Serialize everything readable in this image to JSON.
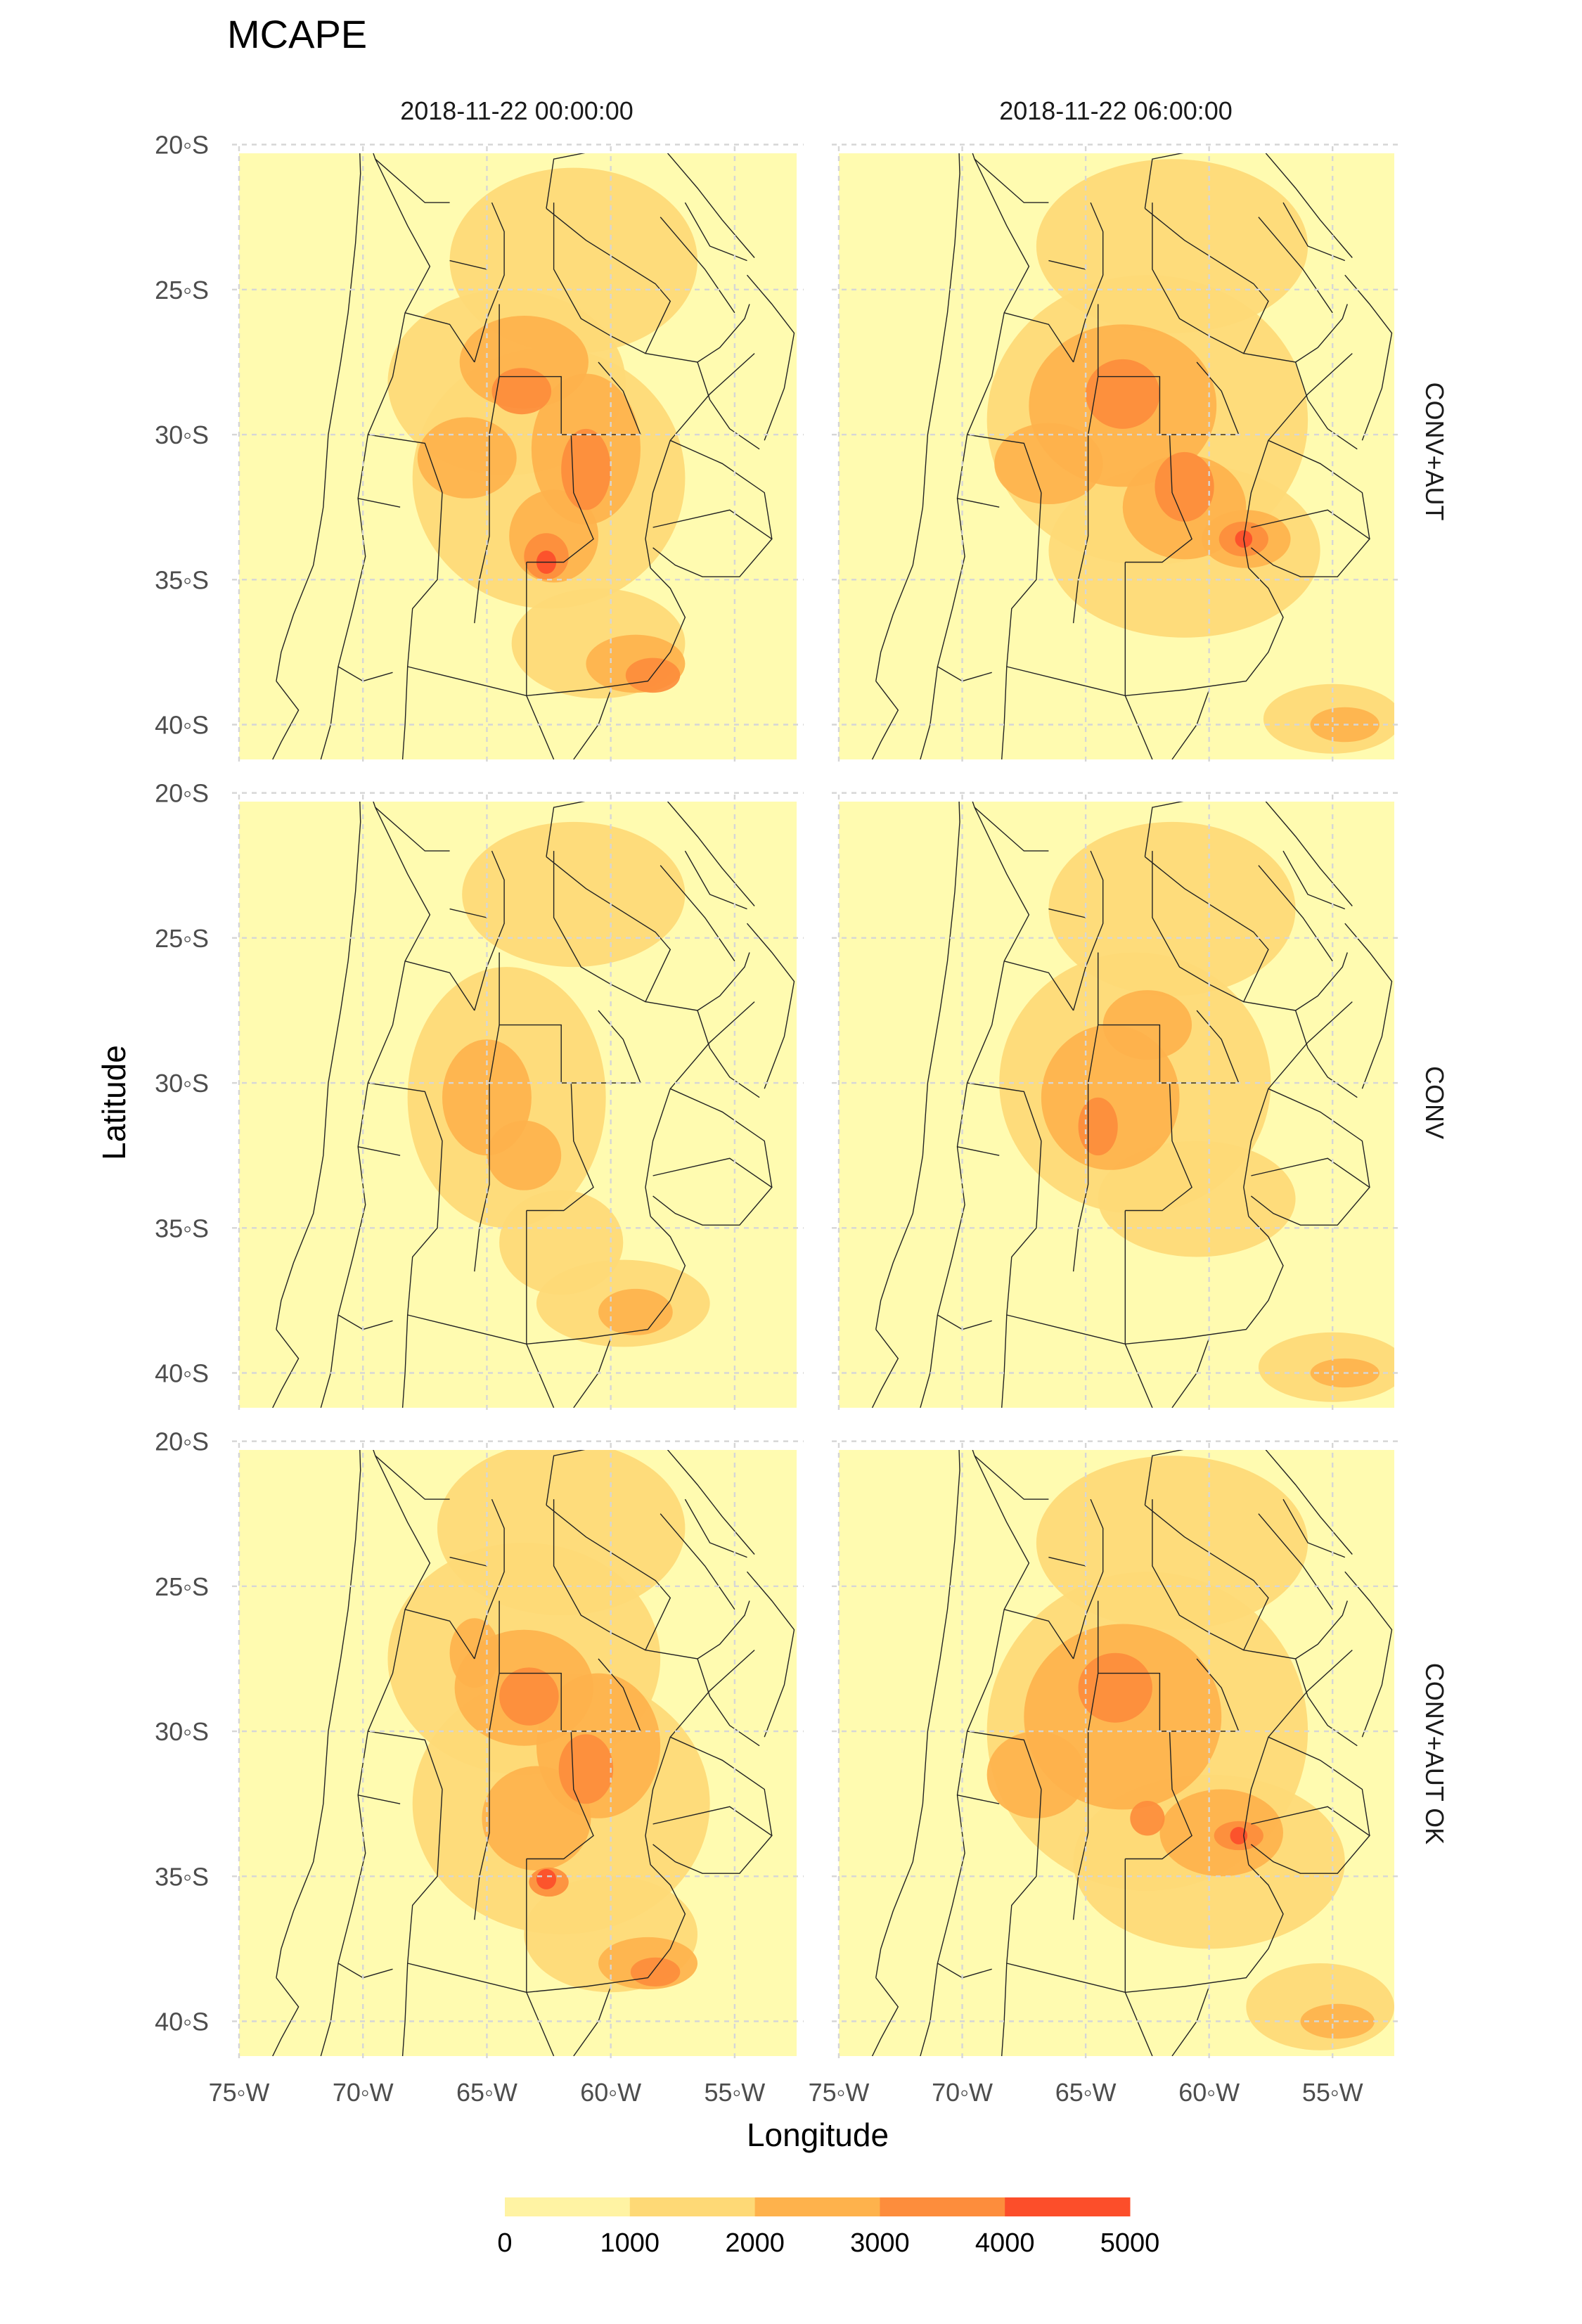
{
  "chart_data": {
    "type": "heatmap",
    "title": "MCAPE",
    "xlabel": "Longitude",
    "ylabel": "Latitude",
    "xlim": [
      -75,
      -52.5
    ],
    "ylim": [
      -41.2,
      -20.3
    ],
    "x_ticks": [
      -75,
      -70,
      -65,
      -60,
      -55
    ],
    "x_tick_labels": [
      "75◦W",
      "70◦W",
      "65◦W",
      "60◦W",
      "55◦W"
    ],
    "y_ticks": [
      -20,
      -25,
      -30,
      -35,
      -40
    ],
    "y_tick_labels": [
      "20◦S",
      "25◦S",
      "30◦S",
      "35◦S",
      "40◦S"
    ],
    "columns": [
      "2018-11-22 00:00:00",
      "2018-11-22 06:00:00"
    ],
    "rows": [
      "CONV+AUT",
      "CONV",
      "CONV+AUT OK"
    ],
    "grid": true,
    "legend": {
      "position": "bottom",
      "breaks": [
        0,
        1000,
        2000,
        3000,
        4000,
        5000
      ],
      "labels": [
        "0",
        "1000",
        "2000",
        "3000",
        "4000",
        "5000"
      ],
      "colors": [
        "#FFF3A3",
        "#FED976",
        "#FEB24C",
        "#FD8D3C",
        "#FC4E2A",
        "#E31A1C"
      ]
    },
    "background_color": "#FFFBB0",
    "panels": [
      {
        "row": 0,
        "col": 0,
        "blobs": [
          {
            "lon": -64.2,
            "lat": -28.2,
            "rx": 4.8,
            "ry": 3.2,
            "level": 1
          },
          {
            "lon": -62.5,
            "lat": -31.5,
            "rx": 5.5,
            "ry": 4.5,
            "level": 1
          },
          {
            "lon": -61.5,
            "lat": -24.0,
            "rx": 5.0,
            "ry": 3.2,
            "level": 1
          },
          {
            "lon": -60.5,
            "lat": -37.2,
            "rx": 3.5,
            "ry": 1.9,
            "level": 1
          },
          {
            "lon": -63.5,
            "lat": -27.5,
            "rx": 2.6,
            "ry": 1.6,
            "level": 2
          },
          {
            "lon": -61.0,
            "lat": -30.5,
            "rx": 2.2,
            "ry": 2.6,
            "level": 2
          },
          {
            "lon": -65.8,
            "lat": -30.8,
            "rx": 2.0,
            "ry": 1.4,
            "level": 2
          },
          {
            "lon": -62.3,
            "lat": -33.5,
            "rx": 1.8,
            "ry": 1.6,
            "level": 2
          },
          {
            "lon": -59.0,
            "lat": -37.9,
            "rx": 2.0,
            "ry": 1.0,
            "level": 2
          },
          {
            "lon": -61.0,
            "lat": -31.2,
            "rx": 1.0,
            "ry": 1.4,
            "level": 3
          },
          {
            "lon": -63.6,
            "lat": -28.5,
            "rx": 1.2,
            "ry": 0.8,
            "level": 3
          },
          {
            "lon": -62.6,
            "lat": -34.2,
            "rx": 0.9,
            "ry": 0.8,
            "level": 3
          },
          {
            "lon": -58.3,
            "lat": -38.3,
            "rx": 1.1,
            "ry": 0.6,
            "level": 3
          },
          {
            "lon": -62.6,
            "lat": -34.4,
            "rx": 0.4,
            "ry": 0.4,
            "level": 4
          }
        ]
      },
      {
        "row": 0,
        "col": 1,
        "blobs": [
          {
            "lon": -62.5,
            "lat": -29.5,
            "rx": 6.5,
            "ry": 5.0,
            "level": 1
          },
          {
            "lon": -61.0,
            "lat": -34.0,
            "rx": 5.5,
            "ry": 3.0,
            "level": 1
          },
          {
            "lon": -61.5,
            "lat": -23.5,
            "rx": 5.5,
            "ry": 3.0,
            "level": 1
          },
          {
            "lon": -55.0,
            "lat": -39.8,
            "rx": 2.8,
            "ry": 1.2,
            "level": 1
          },
          {
            "lon": -63.5,
            "lat": -29.0,
            "rx": 3.8,
            "ry": 2.8,
            "level": 2
          },
          {
            "lon": -66.5,
            "lat": -31.0,
            "rx": 2.2,
            "ry": 1.4,
            "level": 2
          },
          {
            "lon": -61.0,
            "lat": -32.5,
            "rx": 2.5,
            "ry": 1.8,
            "level": 2
          },
          {
            "lon": -58.5,
            "lat": -33.6,
            "rx": 1.8,
            "ry": 1.0,
            "level": 2
          },
          {
            "lon": -54.5,
            "lat": -40.0,
            "rx": 1.4,
            "ry": 0.6,
            "level": 2
          },
          {
            "lon": -63.5,
            "lat": -28.6,
            "rx": 1.5,
            "ry": 1.2,
            "level": 3
          },
          {
            "lon": -61.0,
            "lat": -31.8,
            "rx": 1.2,
            "ry": 1.2,
            "level": 3
          },
          {
            "lon": -58.6,
            "lat": -33.6,
            "rx": 1.0,
            "ry": 0.6,
            "level": 3
          },
          {
            "lon": -58.6,
            "lat": -33.6,
            "rx": 0.35,
            "ry": 0.3,
            "level": 4
          }
        ]
      },
      {
        "row": 1,
        "col": 0,
        "blobs": [
          {
            "lon": -64.2,
            "lat": -30.5,
            "rx": 4.0,
            "ry": 4.5,
            "level": 1
          },
          {
            "lon": -61.5,
            "lat": -23.5,
            "rx": 4.5,
            "ry": 2.5,
            "level": 1
          },
          {
            "lon": -62.0,
            "lat": -35.5,
            "rx": 2.5,
            "ry": 1.8,
            "level": 1
          },
          {
            "lon": -59.5,
            "lat": -37.6,
            "rx": 3.5,
            "ry": 1.5,
            "level": 1
          },
          {
            "lon": -65.0,
            "lat": -30.5,
            "rx": 1.8,
            "ry": 2.0,
            "level": 2
          },
          {
            "lon": -63.5,
            "lat": -32.5,
            "rx": 1.5,
            "ry": 1.2,
            "level": 2
          },
          {
            "lon": -59.0,
            "lat": -37.9,
            "rx": 1.5,
            "ry": 0.8,
            "level": 2
          }
        ]
      },
      {
        "row": 1,
        "col": 1,
        "blobs": [
          {
            "lon": -63.0,
            "lat": -30.0,
            "rx": 5.5,
            "ry": 4.5,
            "level": 1
          },
          {
            "lon": -61.5,
            "lat": -24.0,
            "rx": 5.0,
            "ry": 3.0,
            "level": 1
          },
          {
            "lon": -60.5,
            "lat": -34.0,
            "rx": 4.0,
            "ry": 2.0,
            "level": 1
          },
          {
            "lon": -55.0,
            "lat": -39.8,
            "rx": 3.0,
            "ry": 1.2,
            "level": 1
          },
          {
            "lon": -64.0,
            "lat": -30.5,
            "rx": 2.8,
            "ry": 2.5,
            "level": 2
          },
          {
            "lon": -62.5,
            "lat": -28.0,
            "rx": 1.8,
            "ry": 1.2,
            "level": 2
          },
          {
            "lon": -54.5,
            "lat": -40.0,
            "rx": 1.4,
            "ry": 0.5,
            "level": 2
          },
          {
            "lon": -64.5,
            "lat": -31.5,
            "rx": 0.8,
            "ry": 1.0,
            "level": 3
          }
        ]
      },
      {
        "row": 2,
        "col": 0,
        "blobs": [
          {
            "lon": -63.5,
            "lat": -27.5,
            "rx": 5.5,
            "ry": 4.0,
            "level": 1
          },
          {
            "lon": -62.0,
            "lat": -32.5,
            "rx": 6.0,
            "ry": 4.5,
            "level": 1
          },
          {
            "lon": -62.0,
            "lat": -23.0,
            "rx": 5.0,
            "ry": 3.0,
            "level": 1
          },
          {
            "lon": -60.0,
            "lat": -37.0,
            "rx": 3.5,
            "ry": 2.0,
            "level": 1
          },
          {
            "lon": -63.5,
            "lat": -28.5,
            "rx": 2.8,
            "ry": 2.0,
            "level": 2
          },
          {
            "lon": -60.5,
            "lat": -30.5,
            "rx": 2.5,
            "ry": 2.5,
            "level": 2
          },
          {
            "lon": -65.5,
            "lat": -27.3,
            "rx": 1.0,
            "ry": 1.2,
            "level": 2
          },
          {
            "lon": -63.0,
            "lat": -33.0,
            "rx": 2.2,
            "ry": 1.8,
            "level": 2
          },
          {
            "lon": -58.5,
            "lat": -38.0,
            "rx": 2.0,
            "ry": 0.9,
            "level": 2
          },
          {
            "lon": -61.0,
            "lat": -31.3,
            "rx": 1.1,
            "ry": 1.2,
            "level": 3
          },
          {
            "lon": -63.3,
            "lat": -28.8,
            "rx": 1.2,
            "ry": 1.0,
            "level": 3
          },
          {
            "lon": -62.5,
            "lat": -35.2,
            "rx": 0.8,
            "ry": 0.5,
            "level": 3
          },
          {
            "lon": -58.2,
            "lat": -38.3,
            "rx": 1.0,
            "ry": 0.5,
            "level": 3
          },
          {
            "lon": -62.6,
            "lat": -35.1,
            "rx": 0.4,
            "ry": 0.35,
            "level": 4
          }
        ]
      },
      {
        "row": 2,
        "col": 1,
        "blobs": [
          {
            "lon": -62.5,
            "lat": -30.0,
            "rx": 6.5,
            "ry": 5.5,
            "level": 1
          },
          {
            "lon": -61.5,
            "lat": -23.5,
            "rx": 5.5,
            "ry": 3.0,
            "level": 1
          },
          {
            "lon": -60.0,
            "lat": -34.5,
            "rx": 5.5,
            "ry": 3.0,
            "level": 1
          },
          {
            "lon": -55.5,
            "lat": -39.5,
            "rx": 3.0,
            "ry": 1.5,
            "level": 1
          },
          {
            "lon": -63.5,
            "lat": -29.5,
            "rx": 4.0,
            "ry": 3.2,
            "level": 2
          },
          {
            "lon": -67.0,
            "lat": -31.5,
            "rx": 2.0,
            "ry": 1.5,
            "level": 2
          },
          {
            "lon": -59.5,
            "lat": -33.5,
            "rx": 2.5,
            "ry": 1.5,
            "level": 2
          },
          {
            "lon": -54.8,
            "lat": -40.0,
            "rx": 1.5,
            "ry": 0.6,
            "level": 2
          },
          {
            "lon": -63.8,
            "lat": -28.5,
            "rx": 1.5,
            "ry": 1.2,
            "level": 3
          },
          {
            "lon": -62.5,
            "lat": -33.0,
            "rx": 0.7,
            "ry": 0.6,
            "level": 3
          },
          {
            "lon": -58.8,
            "lat": -33.6,
            "rx": 1.0,
            "ry": 0.5,
            "level": 3
          },
          {
            "lon": -58.8,
            "lat": -33.6,
            "rx": 0.35,
            "ry": 0.3,
            "level": 4
          }
        ]
      }
    ]
  }
}
